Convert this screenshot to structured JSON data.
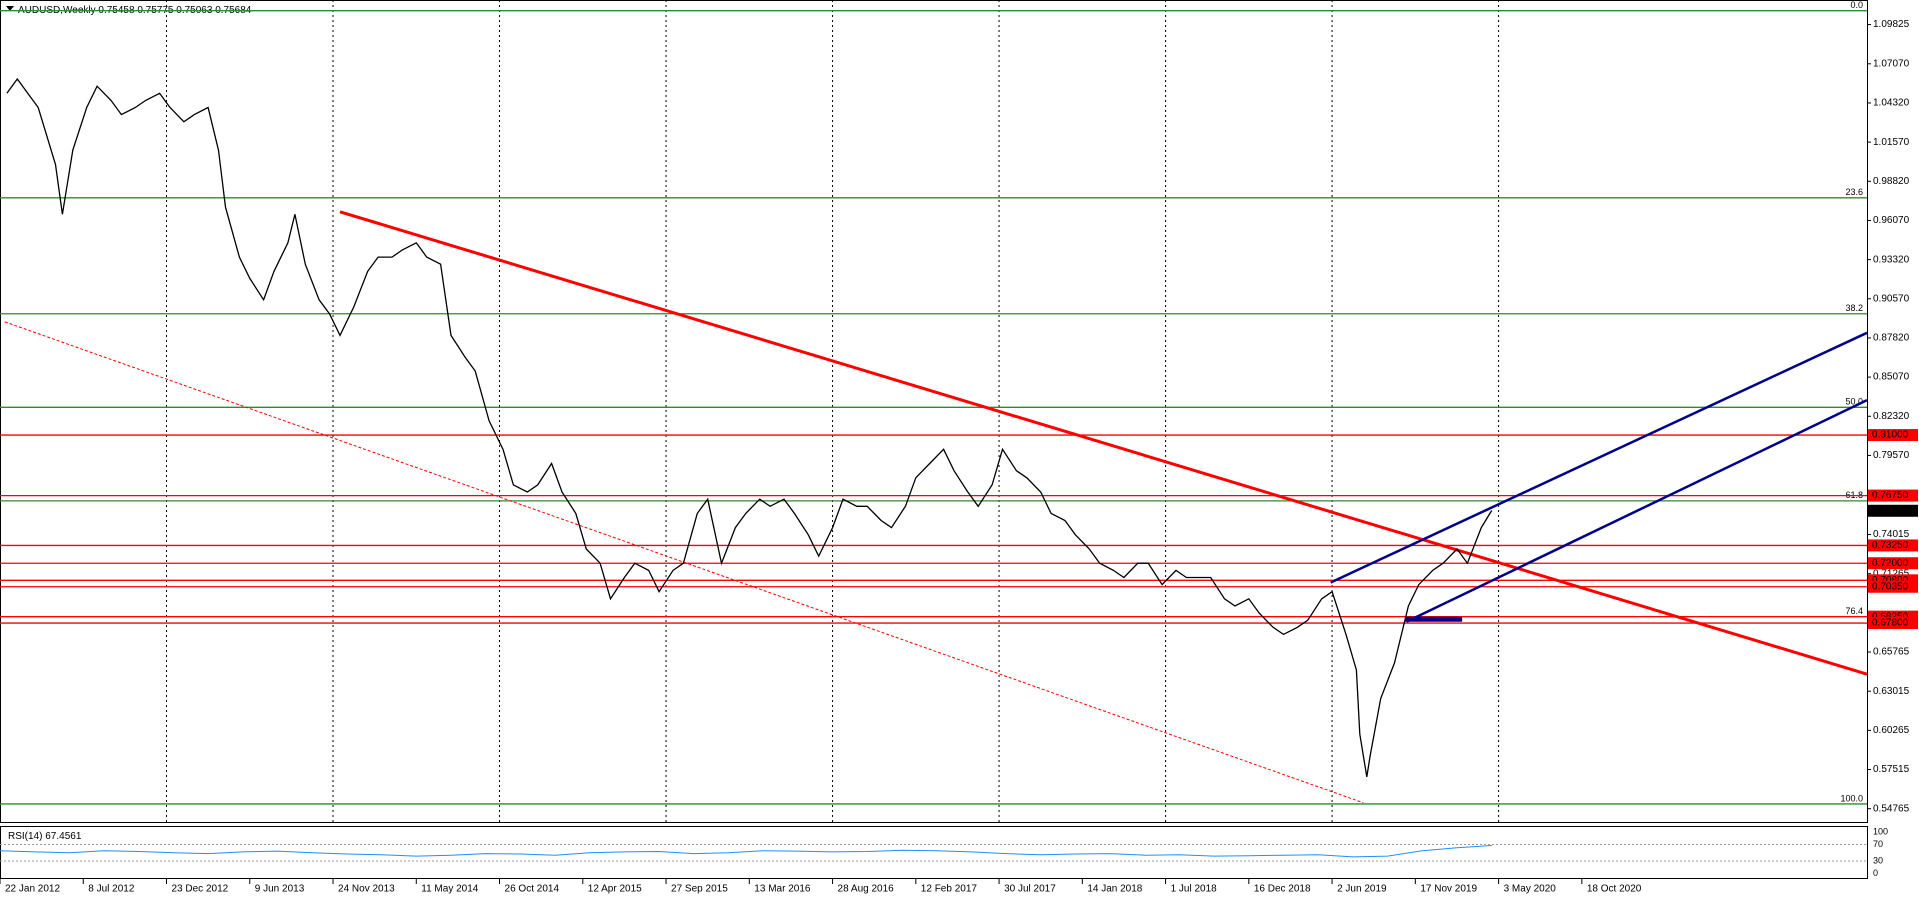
{
  "chart_data": {
    "type": "line",
    "symbol": "AUDUSD,Weekly",
    "ohlc_header": [
      0.75458,
      0.75775,
      0.75063,
      0.75684
    ],
    "xlim": [
      0,
      538.2
    ],
    "ylim": [
      0.5383,
      1.1155
    ],
    "xticks": [
      {
        "value": 0,
        "label": "22 Jan 2012"
      },
      {
        "value": 24,
        "label": "8 Jul 2012"
      },
      {
        "value": 48,
        "label": "23 Dec 2012"
      },
      {
        "value": 72,
        "label": "9 Jun 2013"
      },
      {
        "value": 96,
        "label": "24 Nov 2013"
      },
      {
        "value": 120,
        "label": "11 May 2014"
      },
      {
        "value": 144,
        "label": "26 Oct 2014"
      },
      {
        "value": 168,
        "label": "12 Apr 2015"
      },
      {
        "value": 192,
        "label": "27 Sep 2015"
      },
      {
        "value": 216,
        "label": "13 Mar 2016"
      },
      {
        "value": 240,
        "label": "28 Aug 2016"
      },
      {
        "value": 264,
        "label": "12 Feb 2017"
      },
      {
        "value": 288,
        "label": "30 Jul 2017"
      },
      {
        "value": 312,
        "label": "14 Jan 2018"
      },
      {
        "value": 336,
        "label": "1 Jul 2018"
      },
      {
        "value": 360,
        "label": "16 Dec 2018"
      },
      {
        "value": 384,
        "label": "2 Jun 2019"
      },
      {
        "value": 408,
        "label": "17 Nov 2019"
      },
      {
        "value": 432,
        "label": "3 May 2020"
      },
      {
        "value": 456,
        "label": "18 Oct 2020"
      }
    ],
    "yticks": [
      1.09825,
      {
        "value": 1.0707,
        "label": "1.07070"
      },
      {
        "value": 1.0432,
        "label": "1.04320"
      },
      {
        "value": 1.0157,
        "label": "1.01570"
      },
      {
        "value": 0.9882,
        "label": "0.98820"
      },
      {
        "value": 0.9607,
        "label": "0.96070"
      },
      {
        "value": 0.9332,
        "label": "0.93320"
      },
      {
        "value": 0.9057,
        "label": "0.90570"
      },
      {
        "value": 0.8782,
        "label": "0.87820"
      },
      {
        "value": 0.8507,
        "label": "0.85070"
      },
      {
        "value": 0.8232,
        "label": "0.82320"
      },
      {
        "value": 0.7957,
        "label": "0.79570"
      },
      0.74015,
      0.71265,
      0.65765,
      0.63015,
      0.60265,
      0.57515,
      0.54765
    ],
    "xgrid": true,
    "series": [
      {
        "name": "AUDUSD",
        "color": "#000000",
        "x": [
          2,
          5,
          11,
          16,
          18,
          21,
          25,
          28,
          32,
          35,
          39,
          42,
          46,
          49,
          53,
          56,
          60,
          63,
          65,
          69,
          72,
          76,
          79,
          83,
          85,
          88,
          92,
          95,
          98,
          102,
          106,
          109,
          113,
          116,
          120,
          123,
          127,
          130,
          134,
          137,
          141,
          145,
          148,
          152,
          155,
          159,
          162,
          166,
          169,
          173,
          176,
          180,
          183,
          187,
          190,
          194,
          197,
          201,
          204,
          208,
          212,
          215,
          219,
          222,
          226,
          229,
          233,
          236,
          240,
          243,
          247,
          250,
          254,
          257,
          261,
          264,
          268,
          272,
          275,
          279,
          282,
          286,
          289,
          293,
          296,
          300,
          303,
          307,
          310,
          314,
          317,
          321,
          324,
          328,
          331,
          335,
          339,
          342,
          346,
          349,
          353,
          356,
          360,
          363,
          367,
          370,
          374,
          377,
          381,
          384,
          388,
          391,
          392,
          394,
          395,
          398,
          402,
          406,
          409,
          413,
          416,
          420,
          423,
          427,
          430
        ],
        "values": [
          1.05,
          1.06,
          1.04,
          1.0,
          0.965,
          1.01,
          1.04,
          1.055,
          1.045,
          1.035,
          1.04,
          1.045,
          1.05,
          1.04,
          1.03,
          1.035,
          1.04,
          1.01,
          0.97,
          0.935,
          0.92,
          0.905,
          0.925,
          0.945,
          0.965,
          0.93,
          0.905,
          0.895,
          0.88,
          0.9,
          0.925,
          0.935,
          0.935,
          0.94,
          0.945,
          0.935,
          0.93,
          0.88,
          0.865,
          0.855,
          0.82,
          0.8,
          0.775,
          0.77,
          0.775,
          0.79,
          0.77,
          0.755,
          0.73,
          0.72,
          0.695,
          0.71,
          0.72,
          0.715,
          0.7,
          0.715,
          0.72,
          0.755,
          0.765,
          0.72,
          0.745,
          0.755,
          0.765,
          0.76,
          0.765,
          0.755,
          0.74,
          0.725,
          0.745,
          0.765,
          0.76,
          0.76,
          0.75,
          0.745,
          0.76,
          0.78,
          0.79,
          0.8,
          0.785,
          0.77,
          0.76,
          0.775,
          0.8,
          0.785,
          0.78,
          0.77,
          0.755,
          0.75,
          0.74,
          0.73,
          0.72,
          0.715,
          0.71,
          0.72,
          0.72,
          0.705,
          0.715,
          0.71,
          0.71,
          0.71,
          0.695,
          0.69,
          0.695,
          0.685,
          0.675,
          0.67,
          0.675,
          0.68,
          0.695,
          0.7,
          0.67,
          0.645,
          0.6,
          0.57,
          0.585,
          0.625,
          0.65,
          0.69,
          0.705,
          0.715,
          0.72,
          0.73,
          0.72,
          0.745,
          0.757
        ]
      }
    ],
    "last_price": 0.75684,
    "fib_levels": [
      {
        "price": 1.108,
        "label": "0.0"
      },
      {
        "price": 0.9766,
        "label": "23.6"
      },
      {
        "price": 0.8952,
        "label": "38.2"
      },
      {
        "price": 0.8295,
        "label": "50.0"
      },
      {
        "price": 0.7638,
        "label": "61.8"
      },
      {
        "price": 0.6825,
        "label": "76.4"
      },
      {
        "price": 0.551,
        "label": "100.0"
      }
    ],
    "fib_color": "#2e8b2e",
    "levels": [
      {
        "value": 0.81,
        "label": "0.81000"
      },
      {
        "value": 0.7675,
        "label": "0.76750"
      },
      {
        "value": 0.7325,
        "label": "0.73250"
      },
      {
        "value": 0.72,
        "label": "0.72000"
      },
      {
        "value": 0.708,
        "label": "0.70800"
      },
      {
        "value": 0.7035,
        "label": "0.70350"
      },
      {
        "value": 0.6825,
        "label": "0.68250"
      },
      {
        "value": 0.678,
        "label": "0.67800"
      }
    ],
    "level_color": "#ff0000",
    "trendlines": [
      {
        "color": "#ff0000",
        "width": 3,
        "x": [
          98,
          538.2
        ],
        "y": [
          0.9668,
          0.6421
        ]
      },
      {
        "color": "#ff0000",
        "width": 1,
        "dash": true,
        "x": [
          1.4,
          393
        ],
        "y": [
          0.8895,
          0.5518
        ]
      },
      {
        "color": "#00008b",
        "width": 2.5,
        "x": [
          383.6,
          538.2
        ],
        "y": [
          0.7065,
          0.8818
        ]
      },
      {
        "color": "#00008b",
        "width": 2.5,
        "x": [
          405.5,
          538.2
        ],
        "y": [
          0.679,
          0.8345
        ]
      },
      {
        "color": "#00008b",
        "width": 5,
        "x": [
          405,
          421.5
        ],
        "y": [
          0.6807,
          0.6807
        ]
      }
    ],
    "rsi": {
      "label": "RSI(14)",
      "color": "#1e90ff",
      "ylim": [
        0,
        100
      ],
      "yticks": [
        100,
        70,
        30,
        0
      ],
      "levels": [
        70,
        30
      ],
      "x": [
        0,
        10,
        20,
        30,
        40,
        50,
        60,
        70,
        80,
        90,
        100,
        110,
        120,
        130,
        140,
        150,
        160,
        170,
        180,
        190,
        200,
        210,
        220,
        230,
        240,
        250,
        260,
        270,
        280,
        290,
        300,
        310,
        320,
        330,
        340,
        350,
        360,
        370,
        380,
        390,
        400,
        410,
        420,
        430
      ],
      "values": [
        55,
        52,
        50,
        55,
        53,
        50,
        48,
        52,
        54,
        50,
        47,
        45,
        42,
        44,
        48,
        47,
        44,
        50,
        52,
        53,
        48,
        50,
        55,
        54,
        52,
        53,
        56,
        55,
        52,
        48,
        45,
        47,
        48,
        44,
        45,
        42,
        43,
        44,
        45,
        40,
        42,
        55,
        62,
        67.4561
      ]
    }
  }
}
